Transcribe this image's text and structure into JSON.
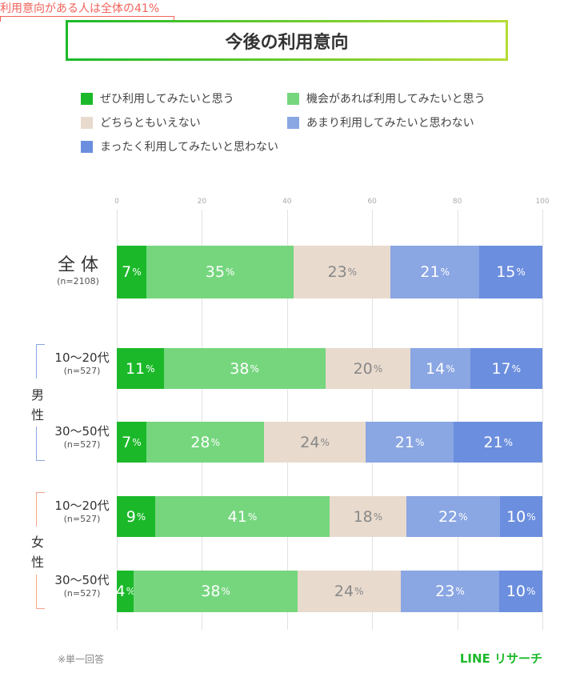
{
  "chart_data": {
    "type": "bar",
    "orientation": "horizontal-stacked-100",
    "title": "今後の利用意向",
    "xlim": [
      0,
      100
    ],
    "xticks": [
      "0",
      "20",
      "40",
      "60",
      "80",
      "100"
    ],
    "grid": true,
    "legend_position": "top",
    "series": [
      {
        "name": "ぜひ利用してみたいと思う",
        "color": "#1bb929"
      },
      {
        "name": "機会があれば利用してみたいと思う",
        "color": "#76d67e"
      },
      {
        "name": "どちらともいえない",
        "color": "#e8dacd"
      },
      {
        "name": "あまり利用してみたいと思わない",
        "color": "#8aa6e3"
      },
      {
        "name": "まったく利用してみたいと思わない",
        "color": "#6b8ede"
      }
    ],
    "rows": [
      {
        "group": "",
        "label": "全 体",
        "n": "(n=2108)",
        "values": [
          7,
          35,
          23,
          21,
          15
        ]
      },
      {
        "group": "男性",
        "label": "10〜20代",
        "n": "(n=527)",
        "values": [
          11,
          38,
          20,
          14,
          17
        ]
      },
      {
        "group": "男性",
        "label": "30〜50代",
        "n": "(n=527)",
        "values": [
          7,
          28,
          24,
          21,
          21
        ]
      },
      {
        "group": "女性",
        "label": "10〜20代",
        "n": "(n=527)",
        "values": [
          9,
          41,
          18,
          22,
          10
        ]
      },
      {
        "group": "女性",
        "label": "30〜50代",
        "n": "(n=527)",
        "values": [
          4,
          38,
          24,
          23,
          10
        ]
      }
    ],
    "percent_suffix": "%",
    "annotation": {
      "text": "利用意向がある人は全体の41%",
      "color": "#f2635a",
      "range": [
        0,
        41
      ]
    },
    "groups": [
      {
        "label": "男性",
        "color": "#8aa6e3"
      },
      {
        "label": "女性",
        "color": "#f4a38a"
      }
    ]
  },
  "footer": {
    "note": "※単一回答",
    "brand": "LINE リサーチ",
    "brand_color": "#1bb929"
  }
}
